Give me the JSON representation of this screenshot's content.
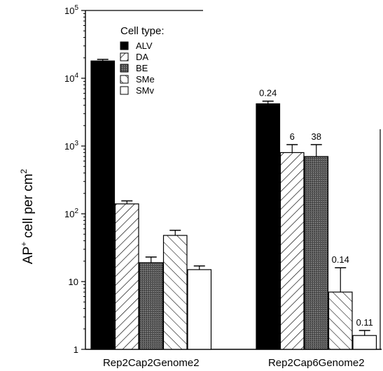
{
  "chart_data": {
    "type": "bar",
    "title": "",
    "ylabel": {
      "base": "AP",
      "sup": "+",
      "rest": " cell per cm",
      "sup2": "2"
    },
    "yscale": "log",
    "ylim": [
      1,
      100000
    ],
    "yticks": [
      {
        "value": 1,
        "base": "1",
        "exp": ""
      },
      {
        "value": 10,
        "base": "10",
        "exp": ""
      },
      {
        "value": 100,
        "base": "10",
        "exp": "2"
      },
      {
        "value": 1000,
        "base": "10",
        "exp": "3"
      },
      {
        "value": 10000,
        "base": "10",
        "exp": "4"
      },
      {
        "value": 100000,
        "base": "10",
        "exp": "5"
      }
    ],
    "legend": {
      "title": "Cell type:",
      "placement": "top-left",
      "entries": [
        "ALV",
        "DA",
        "BE",
        "SMe",
        "SMv"
      ]
    },
    "groups": [
      {
        "label": "Rep2Cap2Genome2",
        "bars": [
          {
            "series": "ALV",
            "value": 18000,
            "err_high": 19000,
            "annotation": ""
          },
          {
            "series": "DA",
            "value": 140,
            "err_high": 155,
            "annotation": ""
          },
          {
            "series": "BE",
            "value": 19,
            "err_high": 23,
            "annotation": ""
          },
          {
            "series": "SMe",
            "value": 48,
            "err_high": 57,
            "annotation": ""
          },
          {
            "series": "SMv",
            "value": 15,
            "err_high": 17,
            "annotation": ""
          }
        ]
      },
      {
        "label": "Rep2Cap6Genome2",
        "bars": [
          {
            "series": "ALV",
            "value": 4200,
            "err_high": 4600,
            "annotation": "0.24"
          },
          {
            "series": "DA",
            "value": 800,
            "err_high": 1050,
            "annotation": "6"
          },
          {
            "series": "BE",
            "value": 700,
            "err_high": 1050,
            "annotation": "38"
          },
          {
            "series": "SMe",
            "value": 7,
            "err_high": 16,
            "annotation": "0.14"
          },
          {
            "series": "SMv",
            "value": 1.6,
            "err_high": 1.9,
            "annotation": "0.11"
          }
        ]
      }
    ]
  }
}
